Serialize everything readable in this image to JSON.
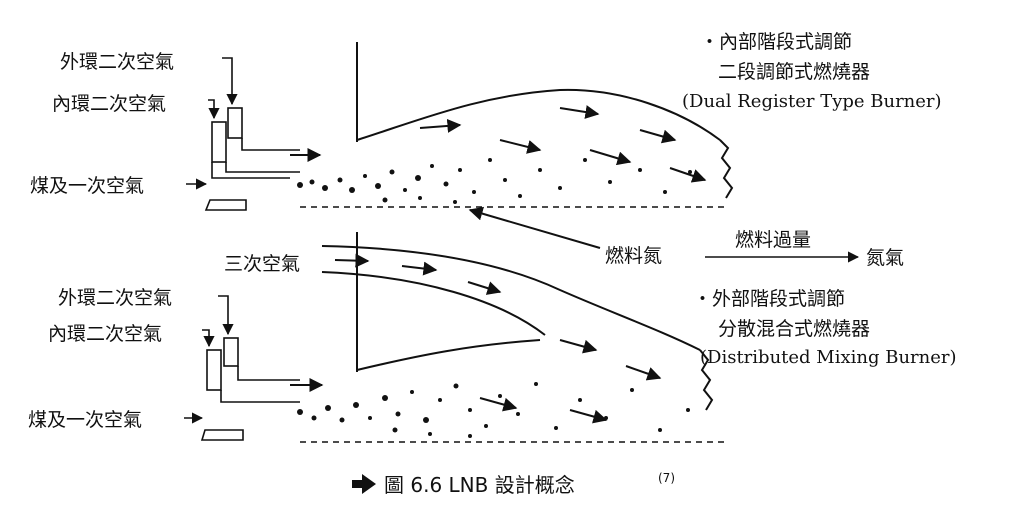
{
  "top_burner": {
    "outer_secondary_air": "外環二次空氣",
    "inner_secondary_air": "內環二次空氣",
    "coal_primary_air": "煤及一次空氣",
    "stage_title": "・內部階段式調節",
    "name_zh": "二段調節式燃燒器",
    "name_en": "(Dual Register Type Burner)"
  },
  "middle": {
    "fuel_nitrogen": "燃料氮",
    "excess_fuel": "燃料過量",
    "nitrogen_gas": "氮氣"
  },
  "bottom_burner": {
    "tertiary_air": "三次空氣",
    "outer_secondary_air": "外環二次空氣",
    "inner_secondary_air": "內環二次空氣",
    "coal_primary_air": "煤及一次空氣",
    "stage_title": "・外部階段式調節",
    "name_zh": "分散混合式燃燒器",
    "name_en": "(Distributed Mixing Burner)"
  },
  "caption": {
    "arrow_icon": "right-arrow-icon",
    "text": "圖 6.6  LNB 設計概念",
    "ref": "(7)"
  }
}
